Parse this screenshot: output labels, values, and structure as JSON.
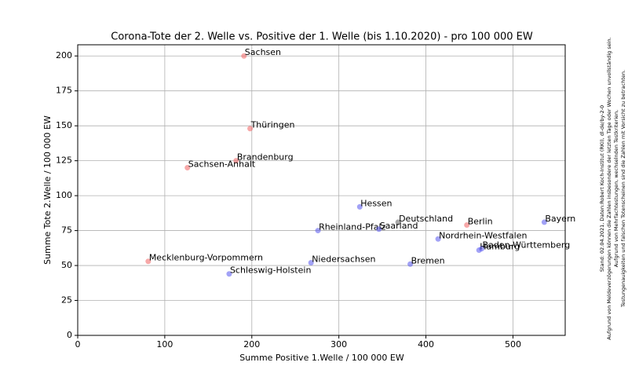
{
  "chart_data": {
    "type": "scatter",
    "title": "Corona-Tote der 2. Welle vs. Positive der 1. Welle (bis 1.10.2020) - pro 100 000 EW",
    "x_label": "Summe Positive 1.Welle / 100 000  EW",
    "y_label": "Summe Tote 2.Welle / 100 000 EW",
    "points": [
      {
        "label": "Sachsen",
        "x": 191,
        "y": 200,
        "color": "#f06060"
      },
      {
        "label": "Thüringen",
        "x": 198,
        "y": 148,
        "color": "#f06060"
      },
      {
        "label": "Brandenburg",
        "x": 182,
        "y": 125,
        "color": "#f06060"
      },
      {
        "label": "Sachsen-Anhalt",
        "x": 126,
        "y": 120,
        "color": "#f06060"
      },
      {
        "label": "Mecklenburg-Vorpommern",
        "x": 81,
        "y": 53,
        "color": "#f06060"
      },
      {
        "label": "Berlin",
        "x": 447,
        "y": 79,
        "color": "#f06060"
      },
      {
        "label": "Deutschland",
        "x": 368,
        "y": 81,
        "color": "#606060"
      },
      {
        "label": "Hessen",
        "x": 324,
        "y": 92,
        "color": "#5555ee"
      },
      {
        "label": "Rheinland-Pfalz",
        "x": 276,
        "y": 75,
        "color": "#5555ee"
      },
      {
        "label": "Saarland",
        "x": 346,
        "y": 76,
        "color": "#5555ee"
      },
      {
        "label": "Niedersachsen",
        "x": 268,
        "y": 52,
        "color": "#5555ee"
      },
      {
        "label": "Schleswig-Holstein",
        "x": 174,
        "y": 44,
        "color": "#5555ee"
      },
      {
        "label": "Bremen",
        "x": 382,
        "y": 51,
        "color": "#5555ee"
      },
      {
        "label": "Nordrhein-Westfalen",
        "x": 414,
        "y": 69,
        "color": "#5555ee"
      },
      {
        "label": "Hamburg",
        "x": 461,
        "y": 61,
        "color": "#5555ee"
      },
      {
        "label": "Baden-Württemberg",
        "x": 464,
        "y": 62,
        "color": "#5555ee"
      },
      {
        "label": "Bayern",
        "x": 536,
        "y": 81,
        "color": "#5555ee"
      }
    ],
    "xlim": [
      0,
      560
    ],
    "xticks": [
      0,
      100,
      200,
      300,
      400,
      500
    ],
    "ylim": [
      0,
      208
    ],
    "yticks": [
      0,
      25,
      50,
      75,
      100,
      125,
      150,
      175,
      200
    ],
    "grid": true,
    "side_note": [
      "Stand: 02.04.2021, Daten:Robert Koch-Institut (RKI), dl-de/by-2-0",
      "Aufgrund von Meldeverzögerungen können die Zahlen insbesondere der letzten Tage oder Wochen unvollständig sein.",
      "Aufgrund von Mehrfachtestungen, wechselnden Testkriterien,",
      "Testungenauigkeiten und falschen Totenscheinen sind die Zahlen mit Vorsicht zu betrachten."
    ]
  }
}
